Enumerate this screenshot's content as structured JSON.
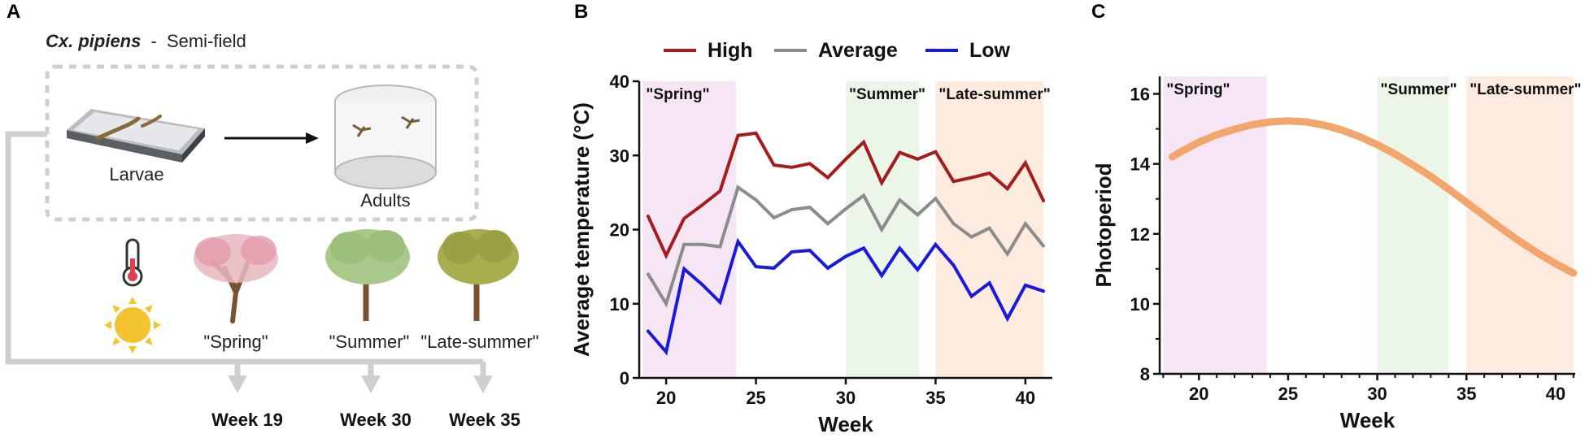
{
  "panel_a": {
    "letter": "A",
    "species": "Cx. pipiens",
    "dash": "-",
    "setting": "Semi-field",
    "larvae_label": "Larvae",
    "adults_label": "Adults",
    "trees": [
      {
        "label": "\"Spring\"",
        "color": "#e9b7c0"
      },
      {
        "label": "\"Summer\"",
        "color": "#a9c98a"
      },
      {
        "label": "\"Late-summer\"",
        "color": "#a8ad4e"
      }
    ],
    "weeks": [
      "Week 19",
      "Week 30",
      "Week 35"
    ]
  },
  "panel_b": {
    "letter": "B",
    "chart_data": {
      "type": "line",
      "title": "",
      "xlabel": "Week",
      "ylabel": "Average temperature (°C)",
      "xlim": [
        18.5,
        41.5
      ],
      "ylim": [
        0,
        40
      ],
      "xticks": [
        20,
        25,
        30,
        35,
        40
      ],
      "yticks": [
        0,
        10,
        20,
        30,
        40
      ],
      "legend": "top",
      "x": [
        19,
        20,
        21,
        22,
        23,
        24,
        25,
        26,
        27,
        28,
        29,
        30,
        31,
        32,
        33,
        34,
        35,
        36,
        37,
        38,
        39,
        40,
        41
      ],
      "series": [
        {
          "name": "High",
          "color": "#a51c1c",
          "values": [
            21.8,
            16.5,
            21.5,
            23.3,
            25.2,
            32.7,
            33.0,
            28.7,
            28.4,
            28.9,
            27.0,
            29.5,
            31.8,
            26.3,
            30.4,
            29.5,
            30.5,
            26.5,
            27.0,
            27.6,
            25.5,
            29.0,
            23.9
          ]
        },
        {
          "name": "Average",
          "color": "#8c8c8c",
          "values": [
            14.0,
            10.0,
            18.0,
            18.0,
            17.7,
            25.7,
            24.0,
            21.6,
            22.7,
            23.0,
            20.8,
            22.8,
            24.6,
            20.0,
            24.0,
            22.0,
            24.2,
            20.8,
            19.0,
            20.2,
            16.7,
            20.8,
            17.8
          ]
        },
        {
          "name": "Low",
          "color": "#1a1adb",
          "values": [
            6.3,
            3.5,
            14.7,
            12.6,
            10.2,
            18.4,
            15.0,
            14.8,
            17.0,
            17.2,
            14.8,
            16.4,
            17.5,
            13.8,
            17.5,
            14.6,
            18.0,
            15.2,
            11.0,
            12.8,
            8.0,
            12.5,
            11.7
          ]
        }
      ],
      "shaded_regions": [
        {
          "label": "\"Spring\"",
          "x_from": 18.7,
          "x_to": 23.9,
          "color": "#f6e6f5"
        },
        {
          "label": "\"Summer\"",
          "x_from": 30.0,
          "x_to": 34.1,
          "color": "#ebf5e8"
        },
        {
          "label": "\"Late-summer\"",
          "x_from": 35.0,
          "x_to": 41.0,
          "color": "#fcebde"
        }
      ]
    }
  },
  "panel_c": {
    "letter": "C",
    "chart_data": {
      "type": "line",
      "title": "",
      "xlabel": "Week",
      "ylabel": "Photoperiod",
      "xlim": [
        17.8,
        41.1
      ],
      "ylim": [
        8,
        16.5
      ],
      "xticks": [
        20,
        25,
        30,
        35,
        40
      ],
      "yticks": [
        8,
        10,
        12,
        14,
        16
      ],
      "x": [
        18.5,
        19,
        20,
        21,
        22,
        23,
        24,
        25,
        26,
        27,
        28,
        29,
        30,
        31,
        32,
        33,
        34,
        35,
        36,
        37,
        38,
        39,
        40,
        41
      ],
      "series": [
        {
          "name": "Photoperiod",
          "color": "#f2a66c",
          "values": [
            14.2,
            14.35,
            14.62,
            14.83,
            14.99,
            15.12,
            15.2,
            15.23,
            15.2,
            15.11,
            14.97,
            14.78,
            14.55,
            14.28,
            13.97,
            13.64,
            13.28,
            12.9,
            12.52,
            12.14,
            11.78,
            11.45,
            11.15,
            10.88
          ]
        }
      ],
      "shaded_regions": [
        {
          "label": "\"Spring\"",
          "x_from": 18.0,
          "x_to": 23.8,
          "color": "#f6e6f5"
        },
        {
          "label": "\"Summer\"",
          "x_from": 30.0,
          "x_to": 34.0,
          "color": "#ebf5e8"
        },
        {
          "label": "\"Late-summer\"",
          "x_from": 35.0,
          "x_to": 41.0,
          "color": "#fcebde"
        }
      ]
    }
  }
}
